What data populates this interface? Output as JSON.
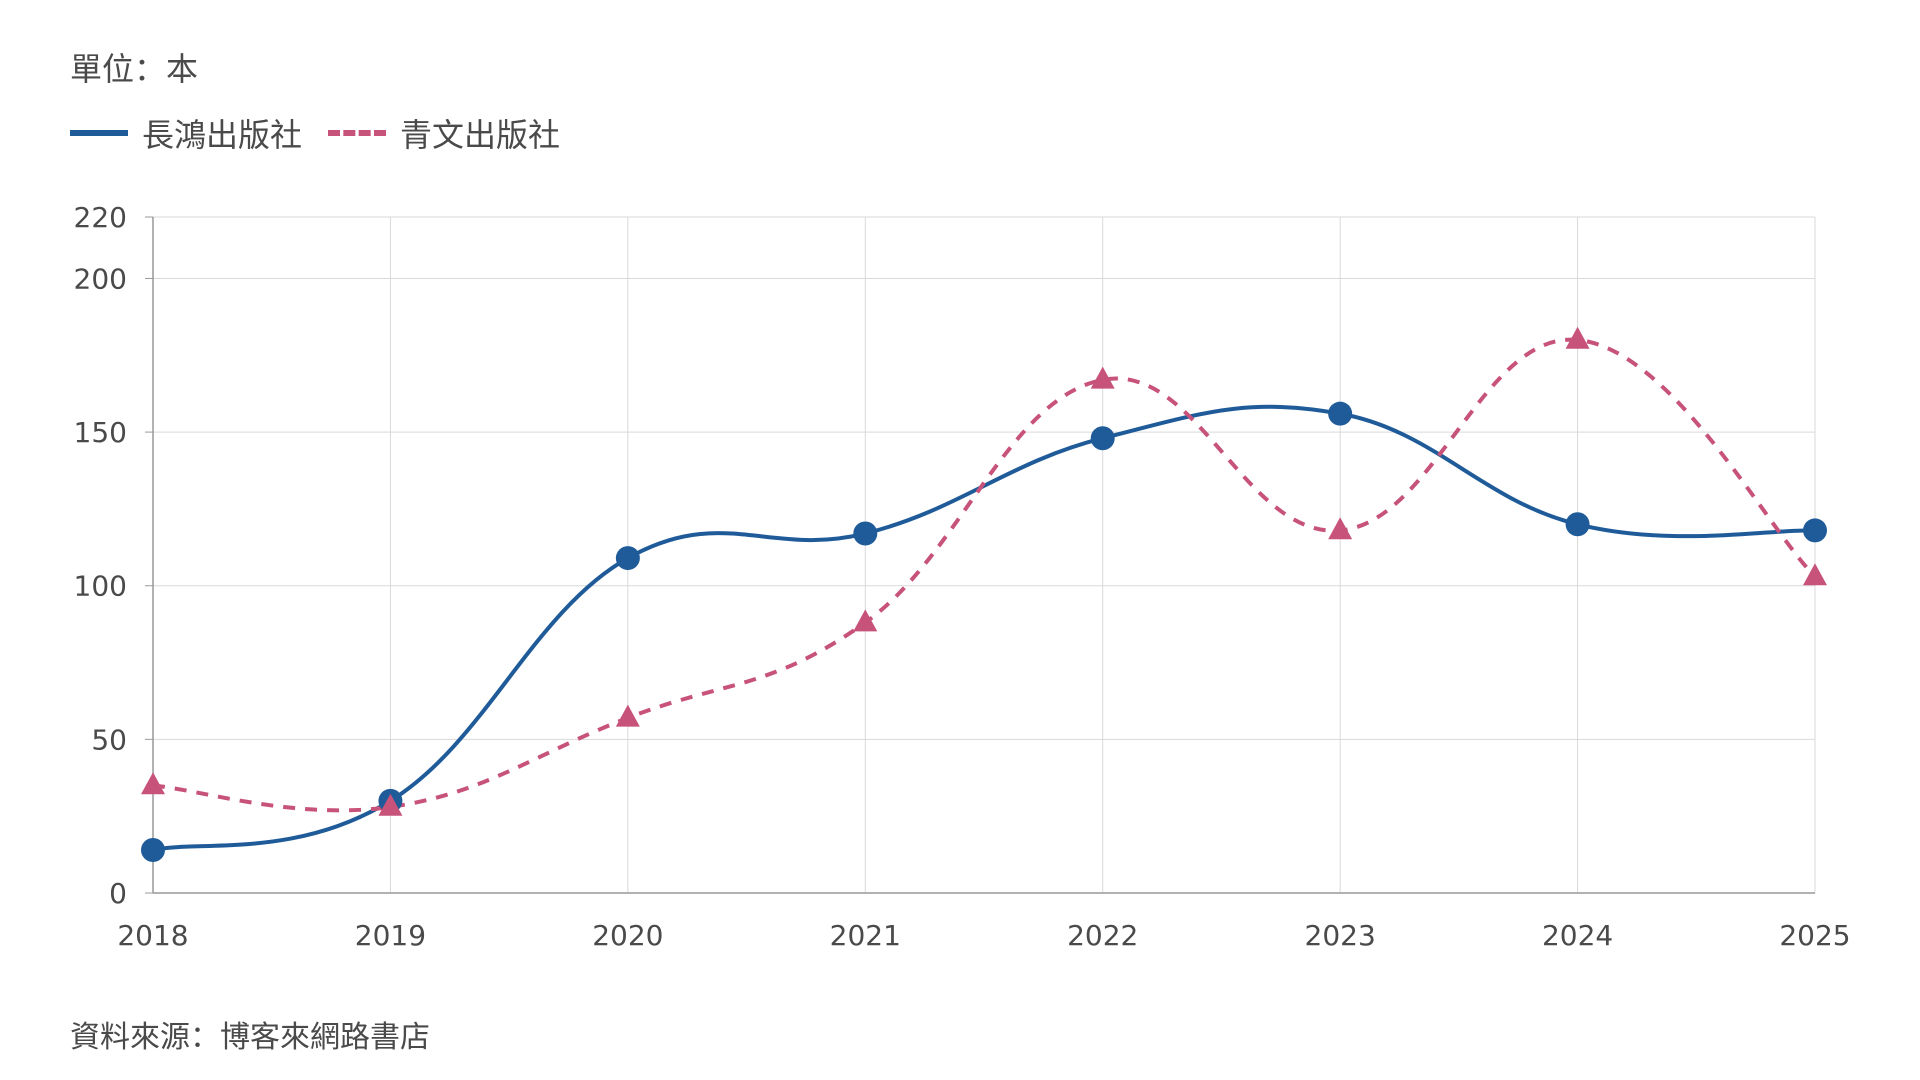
{
  "unit_label": "單位：本",
  "source_note": "資料來源：博客來網路書店",
  "colors": {
    "series1": "#1f5b99",
    "series2": "#c7527a",
    "grid": "#d9d9d9",
    "axis": "#999999",
    "text": "#4a4a4a"
  },
  "chart_data": {
    "type": "line",
    "x": [
      "2018",
      "2019",
      "2020",
      "2021",
      "2022",
      "2023",
      "2024",
      "2025"
    ],
    "series": [
      {
        "name": "長鴻出版社",
        "values": [
          14,
          30,
          109,
          117,
          148,
          156,
          120,
          118
        ],
        "line_style": "solid",
        "marker": "circle",
        "color": "#1f5b99"
      },
      {
        "name": "青文出版社",
        "values": [
          35,
          28,
          57,
          88,
          167,
          118,
          180,
          103
        ],
        "line_style": "dashed",
        "marker": "triangle",
        "color": "#c7527a"
      }
    ],
    "ylim": [
      0,
      220
    ],
    "yticks": [
      0,
      50,
      100,
      150,
      200,
      220
    ],
    "grid": true,
    "legend": "top-left",
    "smooth": true
  }
}
